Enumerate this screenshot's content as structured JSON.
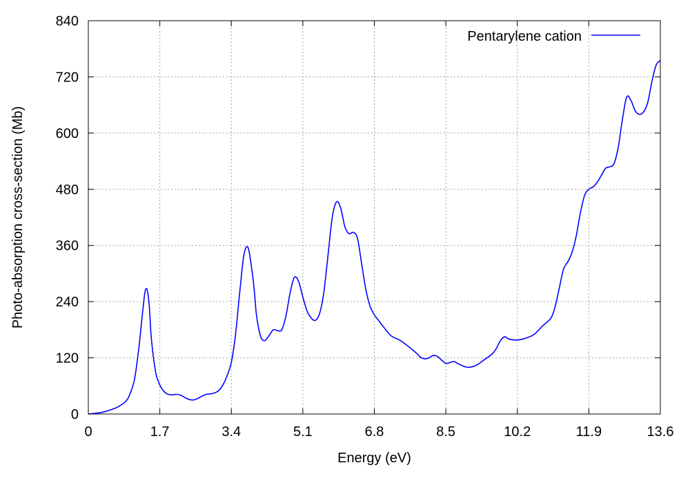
{
  "chart_data": {
    "type": "line",
    "title": "",
    "xlabel": "Energy (eV)",
    "ylabel": "Photo-absorption cross-section (Mb)",
    "xlim": [
      0,
      13.6
    ],
    "ylim": [
      0,
      840
    ],
    "x_ticks": [
      0,
      1.7,
      3.4,
      5.1,
      6.8,
      8.5,
      10.2,
      11.9,
      13.6
    ],
    "x_tick_labels": [
      "0",
      "1.7",
      "3.4",
      "5.1",
      "6.8",
      "8.5",
      "10.2",
      "11.9",
      "13.6"
    ],
    "y_ticks": [
      0,
      120,
      240,
      360,
      480,
      600,
      720,
      840
    ],
    "y_tick_labels": [
      "0",
      "120",
      "240",
      "360",
      "480",
      "600",
      "720",
      "840"
    ],
    "grid": true,
    "legend_position": "top-right",
    "series": [
      {
        "name": "Pentarylene cation",
        "color": "#0000ff",
        "x": [
          0,
          0.3,
          0.5,
          0.7,
          0.9,
          1.0,
          1.1,
          1.2,
          1.3,
          1.35,
          1.4,
          1.45,
          1.5,
          1.6,
          1.7,
          1.8,
          1.9,
          2.0,
          2.1,
          2.2,
          2.3,
          2.4,
          2.5,
          2.6,
          2.7,
          2.8,
          2.9,
          3.0,
          3.1,
          3.2,
          3.3,
          3.4,
          3.5,
          3.6,
          3.7,
          3.8,
          3.9,
          3.95,
          4.0,
          4.1,
          4.2,
          4.3,
          4.4,
          4.5,
          4.6,
          4.7,
          4.8,
          4.9,
          5.0,
          5.1,
          5.2,
          5.3,
          5.4,
          5.5,
          5.6,
          5.7,
          5.8,
          5.9,
          6.0,
          6.1,
          6.2,
          6.3,
          6.4,
          6.5,
          6.6,
          6.7,
          6.8,
          6.9,
          7.0,
          7.2,
          7.4,
          7.6,
          7.8,
          7.9,
          8.0,
          8.1,
          8.2,
          8.3,
          8.4,
          8.5,
          8.6,
          8.7,
          8.8,
          9.0,
          9.2,
          9.4,
          9.6,
          9.7,
          9.8,
          9.9,
          10.0,
          10.2,
          10.4,
          10.6,
          10.8,
          11.0,
          11.1,
          11.2,
          11.3,
          11.4,
          11.5,
          11.6,
          11.7,
          11.8,
          11.9,
          12.0,
          12.1,
          12.2,
          12.3,
          12.4,
          12.5,
          12.6,
          12.7,
          12.8,
          12.9,
          13.0,
          13.1,
          13.2,
          13.3,
          13.4,
          13.5,
          13.6
        ],
        "y": [
          0,
          3,
          8,
          15,
          28,
          45,
          75,
          140,
          225,
          262,
          265,
          230,
          160,
          90,
          62,
          48,
          42,
          41,
          42,
          40,
          35,
          31,
          30,
          33,
          38,
          42,
          43,
          45,
          50,
          62,
          82,
          110,
          170,
          260,
          340,
          355,
          300,
          260,
          210,
          165,
          157,
          168,
          180,
          178,
          180,
          210,
          260,
          292,
          283,
          250,
          220,
          205,
          200,
          215,
          260,
          340,
          420,
          453,
          440,
          400,
          385,
          388,
          375,
          320,
          265,
          230,
          212,
          200,
          188,
          167,
          158,
          145,
          130,
          121,
          118,
          120,
          125,
          123,
          115,
          108,
          110,
          112,
          107,
          100,
          103,
          115,
          128,
          140,
          157,
          165,
          160,
          158,
          162,
          170,
          188,
          205,
          230,
          270,
          310,
          325,
          345,
          380,
          430,
          467,
          480,
          485,
          495,
          510,
          525,
          528,
          535,
          570,
          630,
          677,
          670,
          648,
          640,
          645,
          665,
          710,
          745,
          755
        ]
      }
    ]
  }
}
